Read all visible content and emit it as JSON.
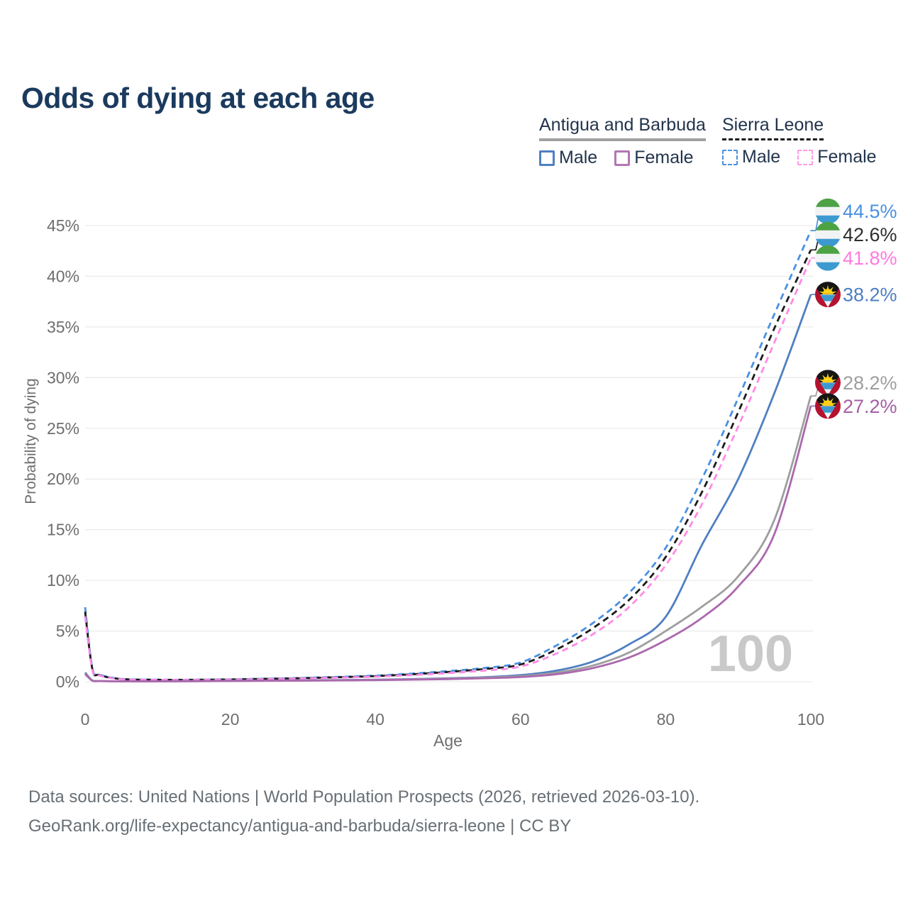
{
  "header": {
    "title": "Odds of dying at each age"
  },
  "legend": {
    "groups": [
      {
        "title": "Antigua and Barbuda",
        "underline_color": "#a0a0a0",
        "underline_dashed": false,
        "items": [
          {
            "label": "Male",
            "color": "#4f7fc2",
            "dashed": false
          },
          {
            "label": "Female",
            "color": "#b277b2",
            "dashed": false
          }
        ]
      },
      {
        "title": "Sierra Leone",
        "underline_color": "#1c1c1c",
        "underline_dashed": true,
        "items": [
          {
            "label": "Male",
            "color": "#4a90e2",
            "dashed": true
          },
          {
            "label": "Female",
            "color": "#ff9ae8",
            "dashed": true
          }
        ]
      }
    ]
  },
  "chart_data": {
    "type": "line",
    "title": "Odds of dying at each age",
    "xlabel": "Age",
    "ylabel": "Probability of dying",
    "xlim": [
      0,
      100
    ],
    "ylim": [
      0,
      45
    ],
    "grid": true,
    "legend_position": "top-right",
    "watermark": "100",
    "xticks": [
      0,
      20,
      40,
      60,
      80,
      100
    ],
    "xtick_labels": [
      "0",
      "20",
      "40",
      "60",
      "80",
      "100"
    ],
    "ytick_labels": [
      "0%",
      "5%",
      "10%",
      "15%",
      "20%",
      "25%",
      "30%",
      "35%",
      "40%",
      "45%"
    ],
    "x": [
      0,
      1,
      2,
      5,
      10,
      15,
      20,
      25,
      30,
      35,
      40,
      45,
      50,
      55,
      60,
      65,
      70,
      75,
      80,
      85,
      90,
      95,
      100
    ],
    "series": [
      {
        "name": "Sierra Leone Male",
        "country": "Sierra Leone",
        "sex": "Male",
        "color": "#4a90e2",
        "label_color": "#4a90e2",
        "dashed": true,
        "end_label": "44.5%",
        "end_value": 44.5,
        "flag": "sl",
        "values": [
          7.35,
          1.35,
          0.7,
          0.28,
          0.2,
          0.2,
          0.24,
          0.3,
          0.38,
          0.48,
          0.6,
          0.8,
          1.05,
          1.35,
          1.9,
          3.6,
          5.8,
          8.8,
          13.2,
          20.0,
          28.0,
          36.3,
          44.5
        ]
      },
      {
        "name": "Sierra Leone Both sexes",
        "country": "Sierra Leone",
        "sex": "Both",
        "color": "#1c1c1c",
        "label_color": "#2e2e2e",
        "dashed": true,
        "end_label": "42.6%",
        "end_value": 42.6,
        "flag": "sl",
        "values": [
          6.9,
          1.25,
          0.65,
          0.26,
          0.19,
          0.19,
          0.22,
          0.28,
          0.35,
          0.44,
          0.55,
          0.73,
          0.96,
          1.25,
          1.7,
          3.2,
          5.3,
          8.1,
          12.3,
          18.7,
          26.6,
          34.9,
          42.6
        ]
      },
      {
        "name": "Sierra Leone Female",
        "country": "Sierra Leone",
        "sex": "Female",
        "color": "#ff8ae6",
        "label_color": "#ff79e1",
        "dashed": true,
        "end_label": "41.8%",
        "end_value": 41.8,
        "flag": "sl",
        "values": [
          6.45,
          1.15,
          0.6,
          0.24,
          0.18,
          0.18,
          0.2,
          0.25,
          0.32,
          0.4,
          0.5,
          0.65,
          0.85,
          1.1,
          1.5,
          2.8,
          4.7,
          7.4,
          11.5,
          17.5,
          25.2,
          33.5,
          41.8
        ]
      },
      {
        "name": "Antigua and Barbuda Male",
        "country": "Antigua and Barbuda",
        "sex": "Male",
        "color": "#4f7fc2",
        "label_color": "#4f7fc2",
        "dashed": false,
        "end_label": "38.2%",
        "end_value": 38.2,
        "flag": "ag",
        "values": [
          0.9,
          0.12,
          0.07,
          0.04,
          0.04,
          0.06,
          0.09,
          0.11,
          0.13,
          0.16,
          0.2,
          0.26,
          0.34,
          0.45,
          0.65,
          1.1,
          2.0,
          3.7,
          6.4,
          13.5,
          20.0,
          28.5,
          38.2
        ]
      },
      {
        "name": "Antigua and Barbuda Both sexes",
        "country": "Antigua and Barbuda",
        "sex": "Both",
        "color": "#9e9e9e",
        "label_color": "#9e9e9e",
        "dashed": false,
        "end_label": "28.2%",
        "end_value": 28.2,
        "flag": "ag",
        "values": [
          0.8,
          0.11,
          0.065,
          0.037,
          0.037,
          0.055,
          0.08,
          0.1,
          0.12,
          0.145,
          0.18,
          0.23,
          0.3,
          0.4,
          0.55,
          0.9,
          1.6,
          2.9,
          5.0,
          7.4,
          10.4,
          16.0,
          28.2
        ]
      },
      {
        "name": "Antigua and Barbuda Female",
        "country": "Antigua and Barbuda",
        "sex": "Female",
        "color": "#ab68ad",
        "label_color": "#a45fa6",
        "dashed": false,
        "end_label": "27.2%",
        "end_value": 27.2,
        "flag": "ag",
        "values": [
          0.75,
          0.1,
          0.06,
          0.033,
          0.033,
          0.05,
          0.07,
          0.09,
          0.105,
          0.13,
          0.16,
          0.2,
          0.26,
          0.34,
          0.46,
          0.75,
          1.35,
          2.4,
          4.1,
          6.3,
          9.4,
          14.6,
          27.2
        ]
      }
    ]
  },
  "footer": {
    "line1": "Data sources: United Nations | World Population Prospects (2026, retrieved 2026-03-10).",
    "line2": "GeoRank.org/life-expectancy/antigua-and-barbuda/sierra-leone | CC BY"
  }
}
